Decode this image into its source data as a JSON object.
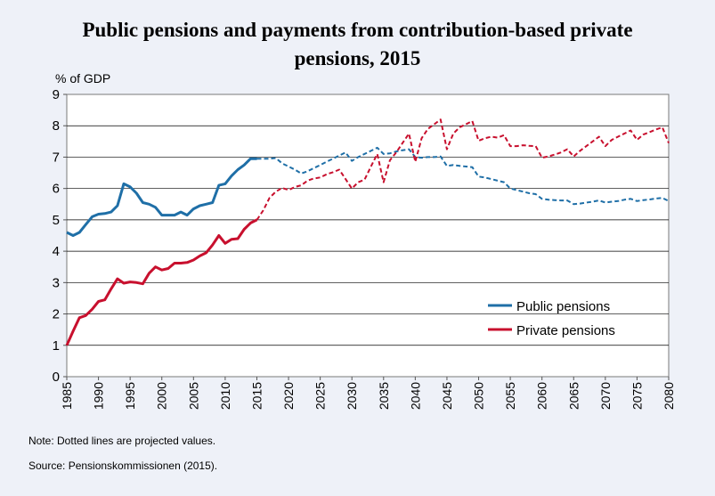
{
  "chart_data": {
    "type": "line",
    "title_line1": "Public pensions and payments from contribution-based private",
    "title_line2": "pensions, 2015",
    "ylabel": "% of GDP",
    "xlabel": "",
    "xlim": [
      1985,
      2080
    ],
    "ylim": [
      0,
      9
    ],
    "yticks": [
      0,
      1,
      2,
      3,
      4,
      5,
      6,
      7,
      8,
      9
    ],
    "xticks": [
      1985,
      1990,
      1995,
      2000,
      2005,
      2010,
      2015,
      2020,
      2025,
      2030,
      2035,
      2040,
      2045,
      2050,
      2055,
      2060,
      2065,
      2070,
      2075,
      2080
    ],
    "grid": "horizontal",
    "legend_position": "lower-right",
    "historical_end": 2015,
    "series": [
      {
        "name": "Public pensions",
        "color": "#1f6fa7",
        "points": [
          [
            1985,
            4.6
          ],
          [
            1986,
            4.5
          ],
          [
            1987,
            4.6
          ],
          [
            1988,
            4.85
          ],
          [
            1989,
            5.1
          ],
          [
            1990,
            5.18
          ],
          [
            1991,
            5.2
          ],
          [
            1992,
            5.25
          ],
          [
            1993,
            5.45
          ],
          [
            1994,
            6.15
          ],
          [
            1995,
            6.05
          ],
          [
            1996,
            5.85
          ],
          [
            1997,
            5.55
          ],
          [
            1998,
            5.5
          ],
          [
            1999,
            5.4
          ],
          [
            2000,
            5.15
          ],
          [
            2001,
            5.15
          ],
          [
            2002,
            5.15
          ],
          [
            2003,
            5.25
          ],
          [
            2004,
            5.15
          ],
          [
            2005,
            5.35
          ],
          [
            2006,
            5.45
          ],
          [
            2007,
            5.5
          ],
          [
            2008,
            5.55
          ],
          [
            2009,
            6.1
          ],
          [
            2010,
            6.15
          ],
          [
            2011,
            6.4
          ],
          [
            2012,
            6.6
          ],
          [
            2013,
            6.75
          ],
          [
            2014,
            6.95
          ],
          [
            2015,
            6.95
          ],
          [
            2016,
            6.95
          ],
          [
            2017,
            6.95
          ],
          [
            2018,
            6.97
          ],
          [
            2019,
            6.8
          ],
          [
            2020,
            6.7
          ],
          [
            2021,
            6.6
          ],
          [
            2022,
            6.48
          ],
          [
            2023,
            6.55
          ],
          [
            2024,
            6.65
          ],
          [
            2025,
            6.75
          ],
          [
            2026,
            6.85
          ],
          [
            2027,
            6.95
          ],
          [
            2028,
            7.05
          ],
          [
            2029,
            7.15
          ],
          [
            2030,
            6.88
          ],
          [
            2031,
            7.0
          ],
          [
            2032,
            7.1
          ],
          [
            2033,
            7.2
          ],
          [
            2034,
            7.3
          ],
          [
            2035,
            7.1
          ],
          [
            2036,
            7.12
          ],
          [
            2037,
            7.18
          ],
          [
            2038,
            7.22
          ],
          [
            2039,
            7.25
          ],
          [
            2040,
            7.0
          ],
          [
            2041,
            6.98
          ],
          [
            2042,
            7.0
          ],
          [
            2043,
            7.0
          ],
          [
            2044,
            7.02
          ],
          [
            2045,
            6.72
          ],
          [
            2046,
            6.75
          ],
          [
            2047,
            6.72
          ],
          [
            2048,
            6.7
          ],
          [
            2049,
            6.68
          ],
          [
            2050,
            6.38
          ],
          [
            2051,
            6.35
          ],
          [
            2052,
            6.3
          ],
          [
            2053,
            6.25
          ],
          [
            2054,
            6.2
          ],
          [
            2055,
            6.0
          ],
          [
            2056,
            5.95
          ],
          [
            2057,
            5.9
          ],
          [
            2058,
            5.85
          ],
          [
            2059,
            5.82
          ],
          [
            2060,
            5.67
          ],
          [
            2061,
            5.64
          ],
          [
            2062,
            5.63
          ],
          [
            2063,
            5.62
          ],
          [
            2064,
            5.62
          ],
          [
            2065,
            5.5
          ],
          [
            2066,
            5.52
          ],
          [
            2067,
            5.55
          ],
          [
            2068,
            5.58
          ],
          [
            2069,
            5.62
          ],
          [
            2070,
            5.55
          ],
          [
            2071,
            5.58
          ],
          [
            2072,
            5.6
          ],
          [
            2073,
            5.64
          ],
          [
            2074,
            5.67
          ],
          [
            2075,
            5.6
          ],
          [
            2076,
            5.63
          ],
          [
            2077,
            5.65
          ],
          [
            2078,
            5.68
          ],
          [
            2079,
            5.7
          ],
          [
            2080,
            5.6
          ]
        ]
      },
      {
        "name": "Private pensions",
        "color": "#c8102e",
        "points": [
          [
            1985,
            1.0
          ],
          [
            1986,
            1.45
          ],
          [
            1987,
            1.88
          ],
          [
            1988,
            1.95
          ],
          [
            1989,
            2.15
          ],
          [
            1990,
            2.4
          ],
          [
            1991,
            2.45
          ],
          [
            1992,
            2.8
          ],
          [
            1993,
            3.12
          ],
          [
            1994,
            2.98
          ],
          [
            1995,
            3.02
          ],
          [
            1996,
            3.0
          ],
          [
            1997,
            2.96
          ],
          [
            1998,
            3.3
          ],
          [
            1999,
            3.5
          ],
          [
            2000,
            3.4
          ],
          [
            2001,
            3.45
          ],
          [
            2002,
            3.62
          ],
          [
            2003,
            3.62
          ],
          [
            2004,
            3.64
          ],
          [
            2005,
            3.72
          ],
          [
            2006,
            3.85
          ],
          [
            2007,
            3.95
          ],
          [
            2008,
            4.2
          ],
          [
            2009,
            4.5
          ],
          [
            2010,
            4.25
          ],
          [
            2011,
            4.38
          ],
          [
            2012,
            4.4
          ],
          [
            2013,
            4.7
          ],
          [
            2014,
            4.9
          ],
          [
            2015,
            5.0
          ],
          [
            2016,
            5.3
          ],
          [
            2017,
            5.7
          ],
          [
            2018,
            5.9
          ],
          [
            2019,
            6.02
          ],
          [
            2020,
            5.95
          ],
          [
            2021,
            6.05
          ],
          [
            2022,
            6.1
          ],
          [
            2023,
            6.25
          ],
          [
            2024,
            6.32
          ],
          [
            2025,
            6.35
          ],
          [
            2026,
            6.45
          ],
          [
            2027,
            6.52
          ],
          [
            2028,
            6.6
          ],
          [
            2029,
            6.3
          ],
          [
            2030,
            6.0
          ],
          [
            2031,
            6.2
          ],
          [
            2032,
            6.28
          ],
          [
            2033,
            6.7
          ],
          [
            2034,
            7.1
          ],
          [
            2035,
            6.2
          ],
          [
            2036,
            6.9
          ],
          [
            2037,
            7.15
          ],
          [
            2038,
            7.45
          ],
          [
            2039,
            7.75
          ],
          [
            2040,
            6.85
          ],
          [
            2041,
            7.6
          ],
          [
            2042,
            7.9
          ],
          [
            2043,
            8.05
          ],
          [
            2044,
            8.2
          ],
          [
            2045,
            7.25
          ],
          [
            2046,
            7.75
          ],
          [
            2047,
            7.95
          ],
          [
            2048,
            8.05
          ],
          [
            2049,
            8.15
          ],
          [
            2050,
            7.52
          ],
          [
            2051,
            7.6
          ],
          [
            2052,
            7.65
          ],
          [
            2053,
            7.62
          ],
          [
            2054,
            7.7
          ],
          [
            2055,
            7.35
          ],
          [
            2056,
            7.35
          ],
          [
            2057,
            7.38
          ],
          [
            2058,
            7.36
          ],
          [
            2059,
            7.35
          ],
          [
            2060,
            6.98
          ],
          [
            2061,
            7.02
          ],
          [
            2062,
            7.08
          ],
          [
            2063,
            7.15
          ],
          [
            2064,
            7.25
          ],
          [
            2065,
            7.02
          ],
          [
            2066,
            7.2
          ],
          [
            2067,
            7.35
          ],
          [
            2068,
            7.5
          ],
          [
            2069,
            7.65
          ],
          [
            2070,
            7.35
          ],
          [
            2071,
            7.55
          ],
          [
            2072,
            7.65
          ],
          [
            2073,
            7.75
          ],
          [
            2074,
            7.85
          ],
          [
            2075,
            7.55
          ],
          [
            2076,
            7.72
          ],
          [
            2077,
            7.8
          ],
          [
            2078,
            7.88
          ],
          [
            2079,
            7.95
          ],
          [
            2080,
            7.45
          ]
        ]
      }
    ]
  },
  "footer": {
    "note": "Note: Dotted lines are projected values.",
    "source": "Source: Pensionskommissionen (2015)."
  }
}
